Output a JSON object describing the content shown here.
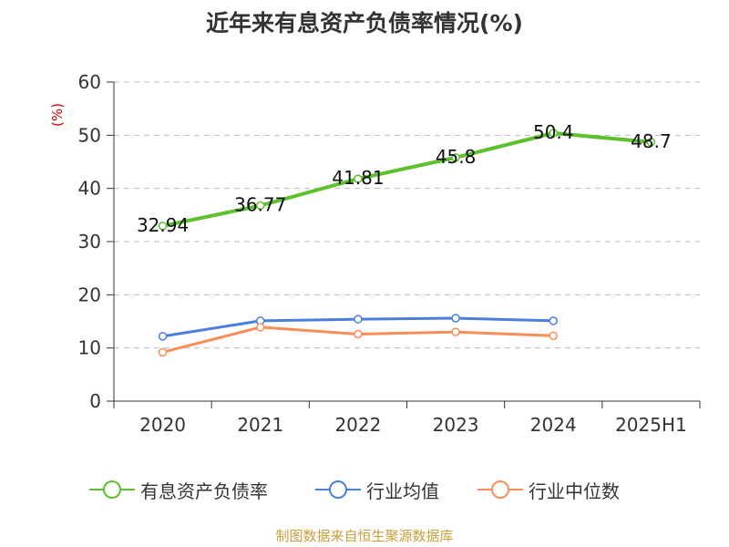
{
  "chart_title": "近年来有息资产负债率情况(%)",
  "footer_text": "制图数据来自恒生聚源数据库",
  "legend": [
    {
      "label": "有息资产负债率",
      "color": "#5cc12c"
    },
    {
      "label": "行业均值",
      "color": "#4a7fdc"
    },
    {
      "label": "行业中位数",
      "color": "#f98d58"
    }
  ],
  "chart_data": {
    "type": "line",
    "title": "近年来有息资产负债率情况(%)",
    "ylabel": "(%)",
    "xlabel": "",
    "categories": [
      "2020",
      "2021",
      "2022",
      "2023",
      "2024",
      "2025H1"
    ],
    "ylim": [
      0,
      60
    ],
    "yticks": [
      0,
      10,
      20,
      30,
      40,
      50,
      60
    ],
    "grid": true,
    "legend_position": "bottom",
    "series": [
      {
        "name": "有息资产负债率",
        "color": "#5cc12c",
        "values": [
          32.94,
          36.77,
          41.81,
          45.8,
          50.4,
          48.7
        ],
        "labels": [
          "32.94",
          "36.77",
          "41.81",
          "45.8",
          "50.4",
          "48.7"
        ]
      },
      {
        "name": "行业均值",
        "color": "#4a7fdc",
        "values": [
          12.2,
          15.1,
          15.4,
          15.6,
          15.1,
          null
        ]
      },
      {
        "name": "行业中位数",
        "color": "#f98d58",
        "values": [
          9.2,
          13.9,
          12.6,
          13.0,
          12.3,
          null
        ]
      }
    ]
  }
}
